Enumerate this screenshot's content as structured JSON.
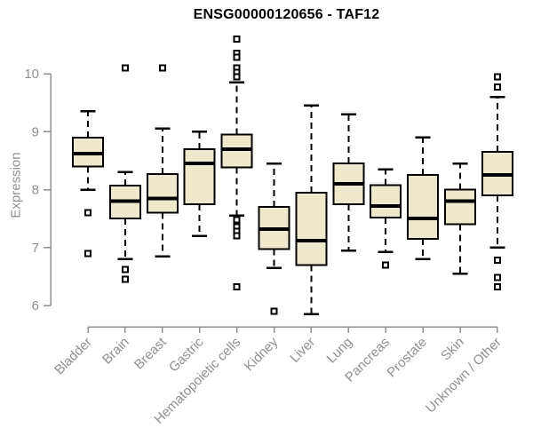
{
  "chart_data": {
    "type": "boxplot",
    "title": "ENSG00000120656 - TAF12",
    "ylabel": "Expression",
    "yticks": [
      6,
      7,
      8,
      9,
      10
    ],
    "ylim": [
      5.75,
      10.75
    ],
    "grid": false,
    "legend": "none",
    "categories": [
      "Bladder",
      "Brain",
      "Breast",
      "Gastric",
      "Hematopoietic cells",
      "Kidney",
      "Liver",
      "Lung",
      "Pancreas",
      "Prostate",
      "Skin",
      "Unknown / Other"
    ],
    "boxes": [
      {
        "category": "Bladder",
        "whisker_low": 8.0,
        "q1": 8.4,
        "median": 8.62,
        "q3": 8.9,
        "whisker_high": 9.35,
        "outliers": [
          7.6,
          6.9
        ]
      },
      {
        "category": "Brain",
        "whisker_low": 6.8,
        "q1": 7.5,
        "median": 7.8,
        "q3": 8.07,
        "whisker_high": 8.3,
        "outliers": [
          10.1,
          6.62,
          6.45
        ]
      },
      {
        "category": "Breast",
        "whisker_low": 6.85,
        "q1": 7.6,
        "median": 7.85,
        "q3": 8.27,
        "whisker_high": 9.05,
        "outliers": [
          10.1
        ]
      },
      {
        "category": "Gastric",
        "whisker_low": 7.2,
        "q1": 7.75,
        "median": 8.45,
        "q3": 8.7,
        "whisker_high": 9.0,
        "outliers": []
      },
      {
        "category": "Hematopoietic cells",
        "whisker_low": 7.55,
        "q1": 8.38,
        "median": 8.7,
        "q3": 8.95,
        "whisker_high": 9.85,
        "outliers": [
          10.6,
          10.35,
          10.28,
          10.1,
          10.02,
          9.95,
          7.48,
          7.36,
          7.28,
          7.2,
          6.32
        ]
      },
      {
        "category": "Kidney",
        "whisker_low": 6.65,
        "q1": 6.97,
        "median": 7.32,
        "q3": 7.7,
        "whisker_high": 8.45,
        "outliers": [
          5.9
        ]
      },
      {
        "category": "Liver",
        "whisker_low": 5.85,
        "q1": 6.7,
        "median": 7.12,
        "q3": 7.95,
        "whisker_high": 9.45,
        "outliers": []
      },
      {
        "category": "Lung",
        "whisker_low": 6.95,
        "q1": 7.75,
        "median": 8.1,
        "q3": 8.45,
        "whisker_high": 9.3,
        "outliers": []
      },
      {
        "category": "Pancreas",
        "whisker_low": 6.92,
        "q1": 7.52,
        "median": 7.72,
        "q3": 8.08,
        "whisker_high": 8.35,
        "outliers": [
          6.7
        ]
      },
      {
        "category": "Prostate",
        "whisker_low": 6.8,
        "q1": 7.15,
        "median": 7.5,
        "q3": 8.25,
        "whisker_high": 8.9,
        "outliers": []
      },
      {
        "category": "Skin",
        "whisker_low": 6.55,
        "q1": 7.4,
        "median": 7.8,
        "q3": 8.0,
        "whisker_high": 8.45,
        "outliers": []
      },
      {
        "category": "Unknown / Other",
        "whisker_low": 7.0,
        "q1": 7.9,
        "median": 8.25,
        "q3": 8.65,
        "whisker_high": 9.6,
        "outliers": [
          9.95,
          9.77,
          6.78,
          6.48,
          6.32
        ]
      }
    ],
    "style": {
      "box_fill": "#EEE8CD",
      "box_stroke": "#000000",
      "median_color": "#000000",
      "whisker_color": "#000000",
      "outlier_color": "#000000",
      "axis_color": "#8F8F8F",
      "text_color": "#909090",
      "title_color": "#000000",
      "background": "#FFFFFF"
    }
  }
}
